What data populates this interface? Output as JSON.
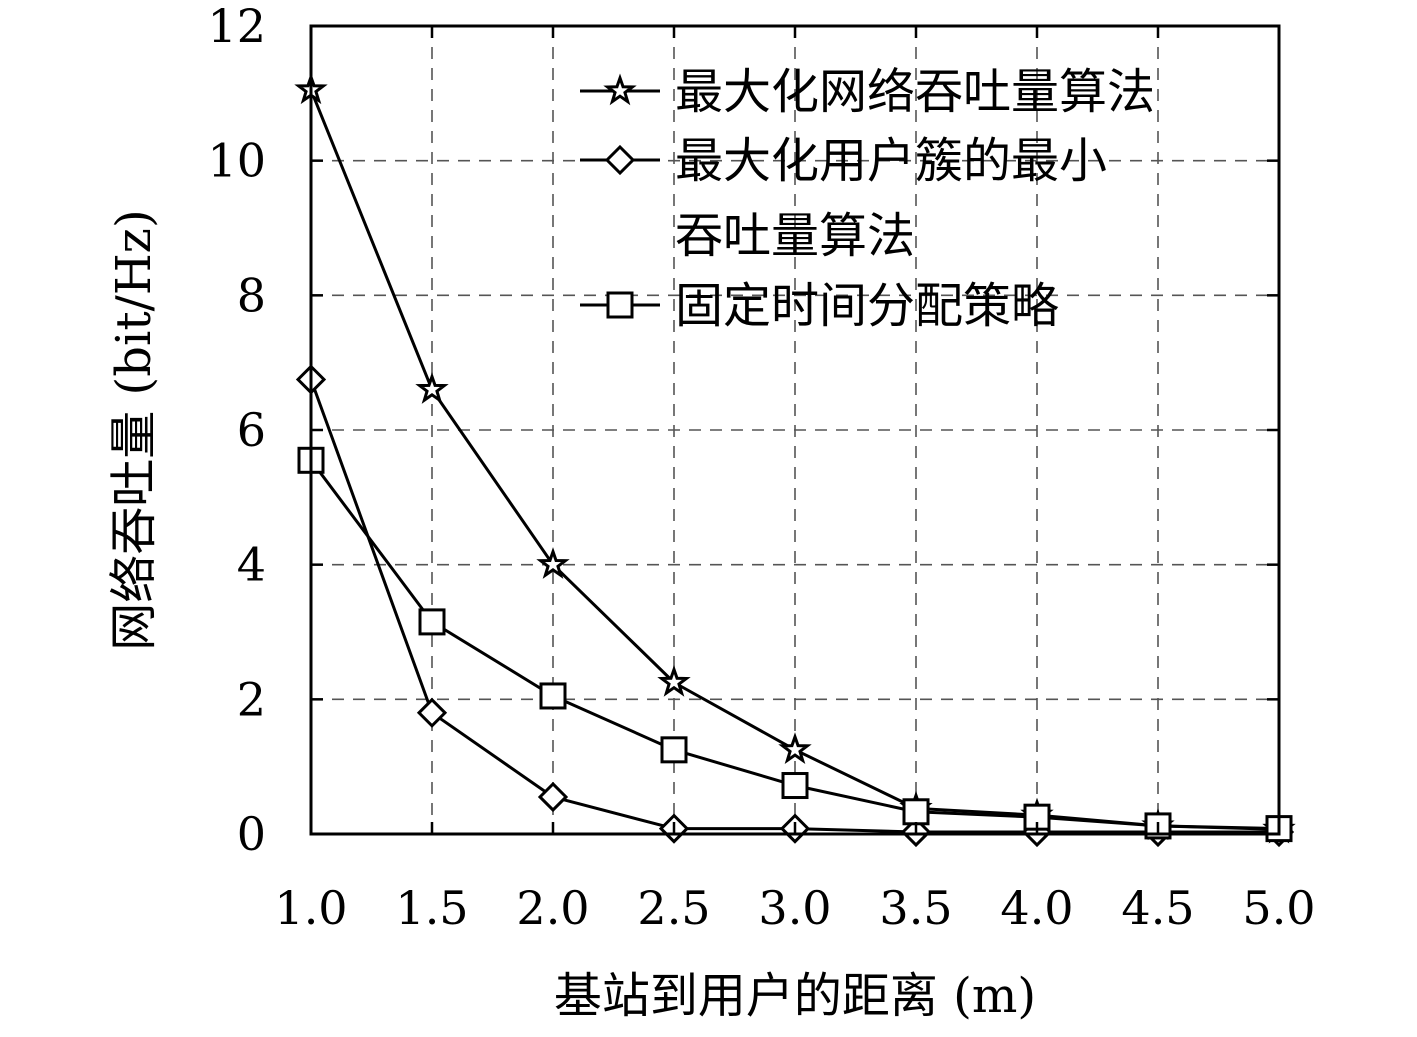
{
  "chart_data": {
    "type": "line",
    "xlabel": "基站到用户的距离 (m)",
    "ylabel": "网络吞吐量 (bit/Hz)",
    "x": [
      1.0,
      1.5,
      2.0,
      2.5,
      3.0,
      3.5,
      4.0,
      4.5,
      5.0
    ],
    "x_tick_labels": [
      "1.0",
      "1.5",
      "2.0",
      "2.5",
      "3.0",
      "3.5",
      "4.0",
      "4.5",
      "5.0"
    ],
    "y_ticks": [
      0,
      2,
      4,
      6,
      8,
      10,
      12
    ],
    "y_tick_labels": [
      "0",
      "2",
      "4",
      "6",
      "8",
      "10",
      "12"
    ],
    "xlim": [
      1.0,
      5.0
    ],
    "ylim": [
      0,
      12
    ],
    "grid": true,
    "legend_position": "top-right",
    "series": [
      {
        "name": "最大化网络吞吐量算法",
        "name_lines": [
          "最大化网络吞吐量算法"
        ],
        "marker": "star",
        "values": [
          11.05,
          6.6,
          4.0,
          2.25,
          1.25,
          0.38,
          0.28,
          0.12,
          0.07
        ]
      },
      {
        "name": "最大化用户簇的最小吞吐量算法",
        "name_lines": [
          "最大化用户簇的最小",
          "吞吐量算法"
        ],
        "marker": "diamond",
        "values": [
          6.75,
          1.8,
          0.55,
          0.08,
          0.08,
          0.03,
          0.03,
          0.03,
          0.03
        ]
      },
      {
        "name": "固定时间分配策略",
        "name_lines": [
          "固定时间分配策略"
        ],
        "marker": "square",
        "values": [
          5.55,
          3.15,
          2.05,
          1.25,
          0.72,
          0.33,
          0.25,
          0.12,
          0.08
        ]
      }
    ]
  }
}
